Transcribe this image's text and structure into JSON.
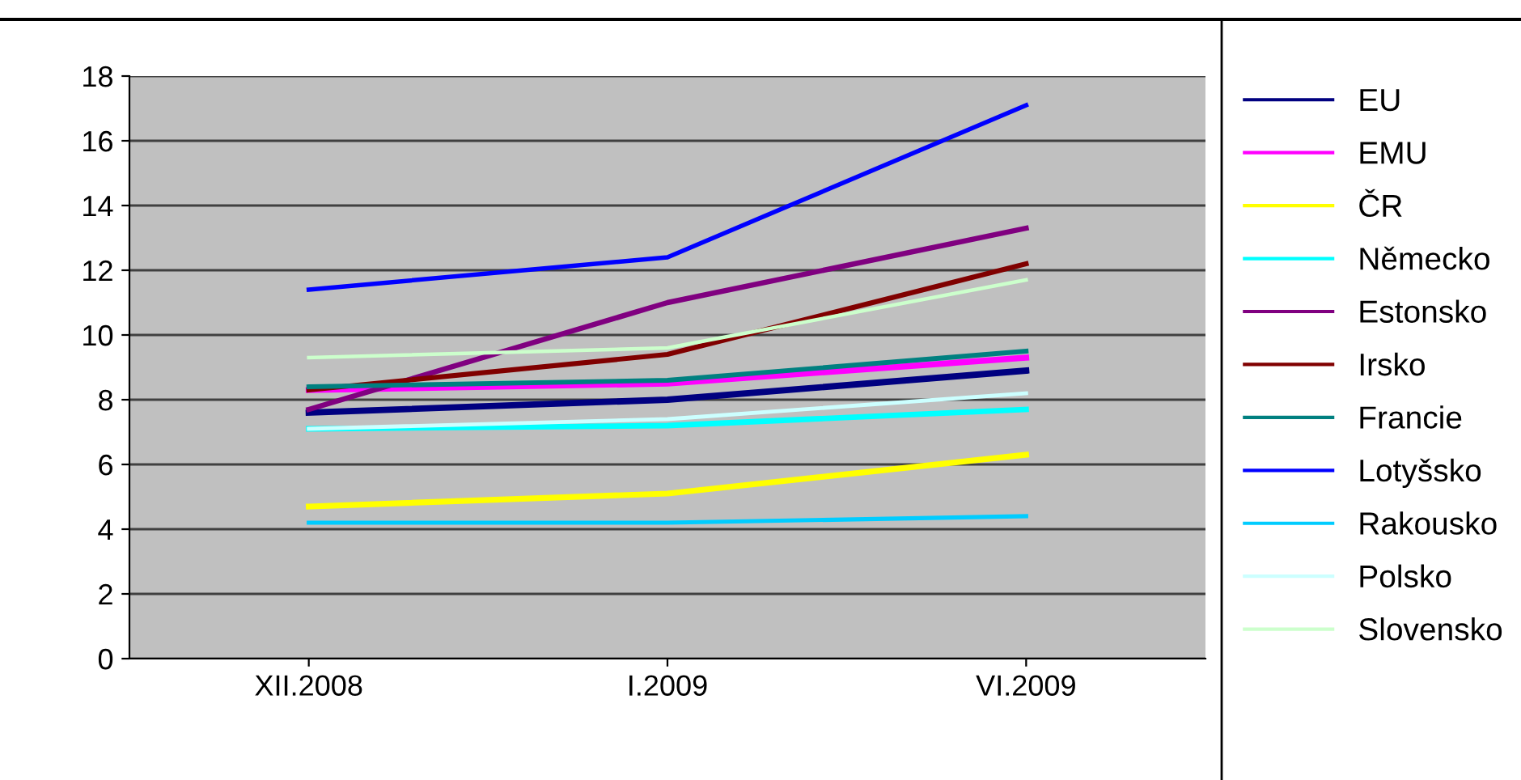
{
  "chart_data": {
    "type": "line",
    "categories": [
      "XII.2008",
      "I.2009",
      "VI.2009"
    ],
    "ylim": [
      0,
      18
    ],
    "yticks": [
      0,
      2,
      4,
      6,
      8,
      10,
      12,
      14,
      16,
      18
    ],
    "grid": "y",
    "legend": "right",
    "line_style": "solid",
    "marker": "none",
    "series": [
      {
        "name": "EU",
        "color": "#000080",
        "values": [
          7.6,
          8.0,
          8.9
        ]
      },
      {
        "name": "EMU",
        "color": "#ff00ff",
        "values": [
          8.3,
          8.5,
          9.3
        ]
      },
      {
        "name": "ČR",
        "color": "#ffff00",
        "values": [
          4.7,
          5.1,
          6.3
        ]
      },
      {
        "name": "Německo",
        "color": "#00ffff",
        "values": [
          7.1,
          7.2,
          7.7
        ]
      },
      {
        "name": "Estonsko",
        "color": "#800080",
        "values": [
          7.7,
          11.0,
          13.3
        ]
      },
      {
        "name": "Irsko",
        "color": "#800000",
        "values": [
          8.3,
          9.4,
          12.2
        ]
      },
      {
        "name": "Francie",
        "color": "#008080",
        "values": [
          8.4,
          8.6,
          9.5
        ]
      },
      {
        "name": "Lotyšsko",
        "color": "#0000ff",
        "values": [
          11.4,
          12.4,
          17.1
        ]
      },
      {
        "name": "Rakousko",
        "color": "#00ccff",
        "values": [
          4.2,
          4.2,
          4.4
        ]
      },
      {
        "name": "Polsko",
        "color": "#ccffff",
        "values": [
          7.1,
          7.4,
          8.2
        ]
      },
      {
        "name": "Slovensko",
        "color": "#ccffcc",
        "values": [
          9.3,
          9.6,
          11.7
        ]
      }
    ]
  }
}
